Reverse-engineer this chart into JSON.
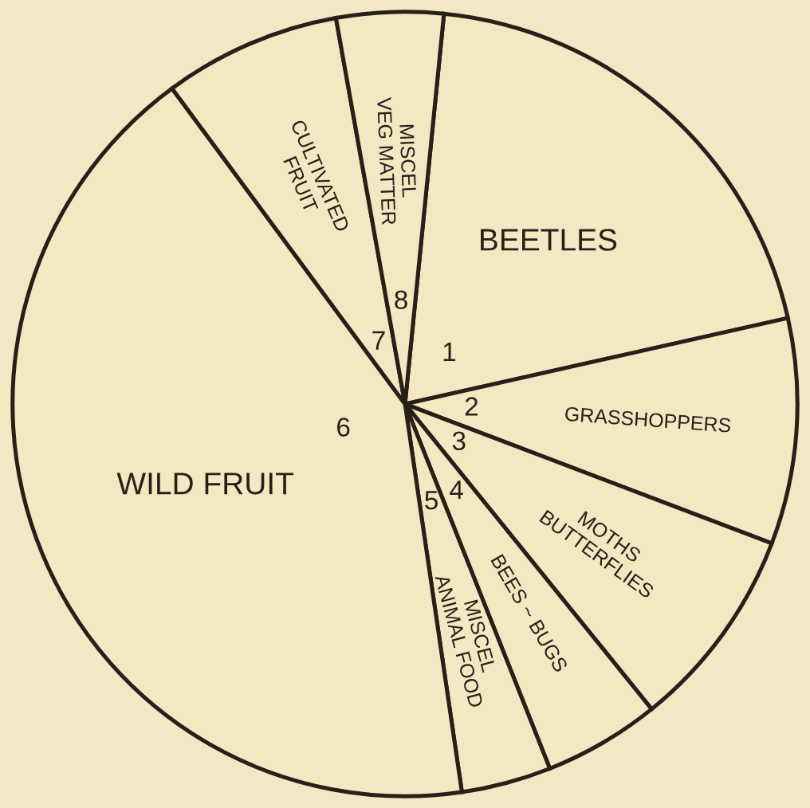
{
  "chart_data": {
    "type": "pie",
    "categories": [
      "BEETLES",
      "GRASSHOPPERS",
      "MOTHS\nBUTTERFLIES",
      "BEES ~ BUGS",
      "MISCEL\nANIMAL FOOD",
      "WILD FRUIT",
      "CULTIVATED\nFRUIT",
      "MISCEL\nVEG MATTER"
    ],
    "values": [
      19.9,
      9.3,
      8.4,
      4.8,
      3.7,
      42.2,
      7.3,
      4.4
    ],
    "colors": [
      "#f3e8c2",
      "#f3e8c2",
      "#f3e8c2",
      "#f3e8c2",
      "#f3e8c2",
      "#f3e8c2",
      "#f3e8c2",
      "#f3e8c2"
    ],
    "annotations": [
      "1",
      "2",
      "3",
      "4",
      "5",
      "6",
      "7",
      "8"
    ]
  }
}
